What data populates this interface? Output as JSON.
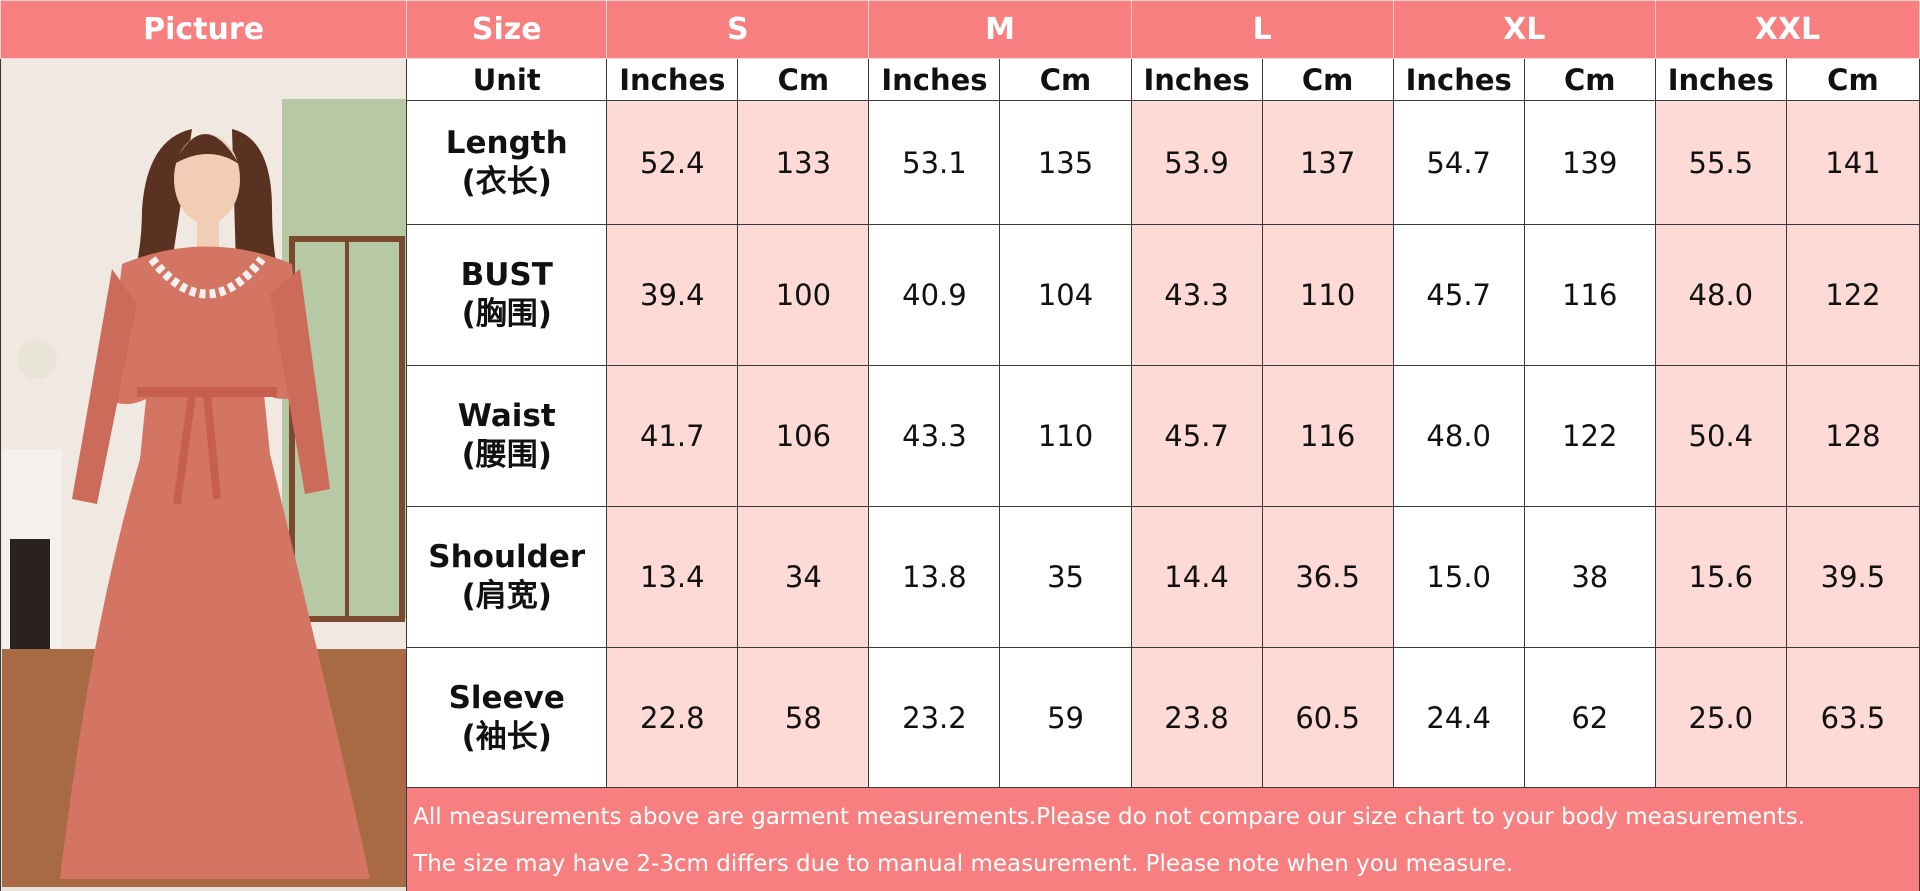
{
  "header": {
    "picture": "Picture",
    "size": "Size",
    "sizes": [
      "S",
      "M",
      "L",
      "XL",
      "XXL"
    ]
  },
  "units": {
    "label": "Unit",
    "columns": [
      "Inches",
      "Cm",
      "Inches",
      "Cm",
      "Inches",
      "Cm",
      "Inches",
      "Cm",
      "Inches",
      "Cm"
    ]
  },
  "rows": [
    {
      "label": "Length",
      "label_cn": "(衣长)",
      "cells": [
        "52.4",
        "133",
        "53.1",
        "135",
        "53.9",
        "137",
        "54.7",
        "139",
        "55.5",
        "141"
      ]
    },
    {
      "label": "BUST",
      "label_cn": "(胸围)",
      "cells": [
        "39.4",
        "100",
        "40.9",
        "104",
        "43.3",
        "110",
        "45.7",
        "116",
        "48.0",
        "122"
      ]
    },
    {
      "label": "Waist",
      "label_cn": "(腰围)",
      "cells": [
        "41.7",
        "106",
        "43.3",
        "110",
        "45.7",
        "116",
        "48.0",
        "122",
        "50.4",
        "128"
      ]
    },
    {
      "label": "Shoulder",
      "label_cn": "(肩宽)",
      "cells": [
        "13.4",
        "34",
        "13.8",
        "35",
        "14.4",
        "36.5",
        "15.0",
        "38",
        "15.6",
        "39.5"
      ]
    },
    {
      "label": "Sleeve",
      "label_cn": "(袖长)",
      "cells": [
        "22.8",
        "58",
        "23.2",
        "59",
        "23.8",
        "60.5",
        "24.4",
        "62",
        "25.0",
        "63.5"
      ]
    }
  ],
  "notes": [
    "All measurements above are garment measurements.Please do not compare our size chart to your body measurements.",
    "The size may have 2-3cm differs due to manual measurement. Please note when you measure."
  ]
}
